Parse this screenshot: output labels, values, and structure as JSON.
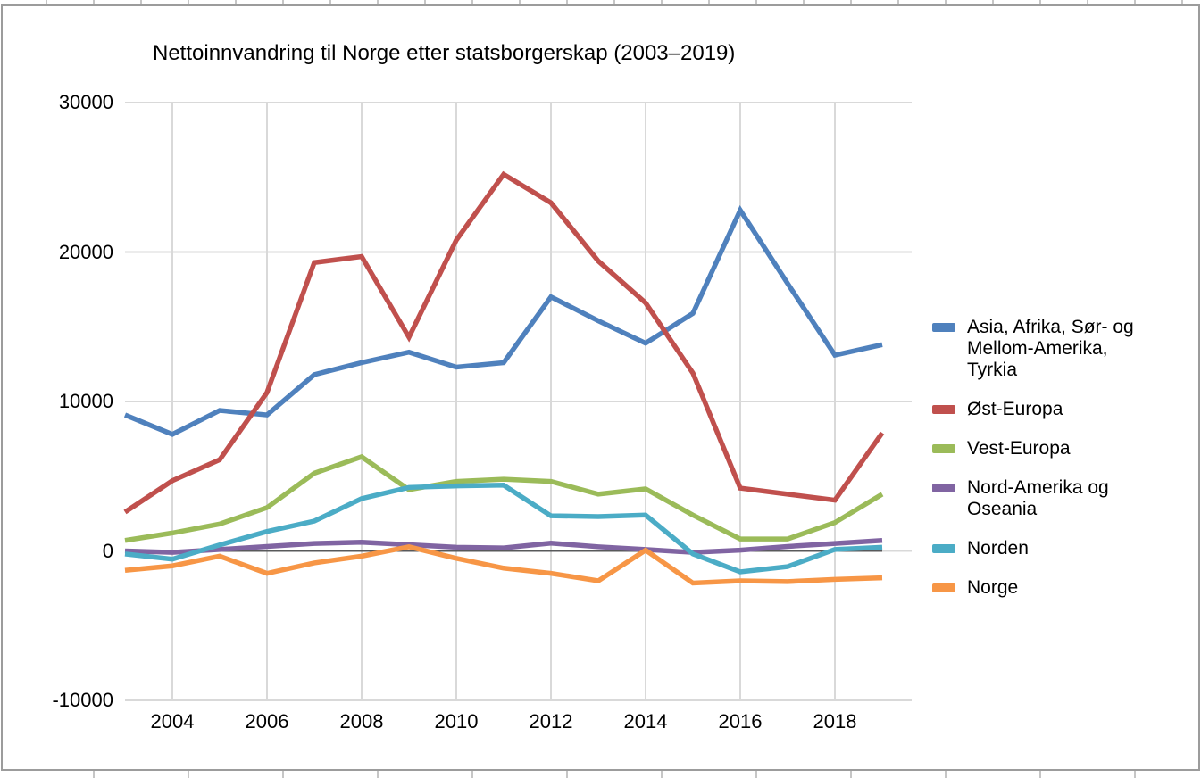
{
  "frame": {
    "border_color": "#9c9c9c",
    "spreadsheet_tick_color": "#c6c6c6",
    "background": "#FFFFFF"
  },
  "chart_data": {
    "type": "line",
    "title": "Nettoinnvandring til Norge etter statsborgerskap (2003–2019)",
    "xlabel": "",
    "ylabel": "",
    "x": [
      2003,
      2004,
      2005,
      2006,
      2007,
      2008,
      2009,
      2010,
      2011,
      2012,
      2013,
      2014,
      2015,
      2016,
      2017,
      2018,
      2019
    ],
    "x_ticks": [
      2004,
      2006,
      2008,
      2010,
      2012,
      2014,
      2016,
      2018
    ],
    "x_tick_labels": [
      "2004",
      "2006",
      "2008",
      "2010",
      "2012",
      "2014",
      "2016",
      "2018"
    ],
    "y_ticks": [
      -10000,
      0,
      10000,
      20000,
      30000
    ],
    "y_tick_labels": [
      "-10000",
      "0",
      "10000",
      "20000",
      "30000"
    ],
    "ylim": [
      -10000,
      30000
    ],
    "xlim": [
      2003,
      2019
    ],
    "grid": true,
    "gridline_color": "#D9D9D9",
    "zero_axis_color": "#58595B",
    "legend_position": "right",
    "series": [
      {
        "name": "Asia, Afrika, Sør- og Mellom-Amerika, Tyrkia",
        "color": "#4F81BD",
        "values": [
          9100,
          7800,
          9400,
          9100,
          11800,
          12600,
          13300,
          12300,
          12600,
          17000,
          15400,
          13900,
          15900,
          22800,
          17900,
          13100,
          13800
        ]
      },
      {
        "name": "Øst-Europa",
        "color": "#C0504D",
        "values": [
          2600,
          4700,
          6100,
          10600,
          19300,
          19700,
          14300,
          20800,
          25200,
          23300,
          19400,
          16600,
          11900,
          4200,
          3800,
          3400,
          7900
        ]
      },
      {
        "name": "Vest-Europa",
        "color": "#9BBB59",
        "values": [
          700,
          1200,
          1800,
          2900,
          5200,
          6300,
          4100,
          4650,
          4800,
          4650,
          3800,
          4150,
          2400,
          800,
          800,
          1900,
          3800
        ]
      },
      {
        "name": "Nord-Amerika og Oseania",
        "color": "#8064A2",
        "values": [
          0,
          -100,
          100,
          300,
          500,
          580,
          420,
          250,
          200,
          520,
          280,
          100,
          -100,
          50,
          300,
          500,
          700
        ]
      },
      {
        "name": "Norden",
        "color": "#4BACC6",
        "values": [
          -200,
          -550,
          400,
          1300,
          2000,
          3500,
          4250,
          4350,
          4400,
          2350,
          2300,
          2400,
          -200,
          -1400,
          -1050,
          100,
          250
        ]
      },
      {
        "name": "Norge",
        "color": "#F79646",
        "values": [
          -1300,
          -1000,
          -350,
          -1500,
          -800,
          -350,
          280,
          -500,
          -1150,
          -1500,
          -2000,
          50,
          -2150,
          -2000,
          -2050,
          -1900,
          -1800
        ]
      }
    ]
  }
}
